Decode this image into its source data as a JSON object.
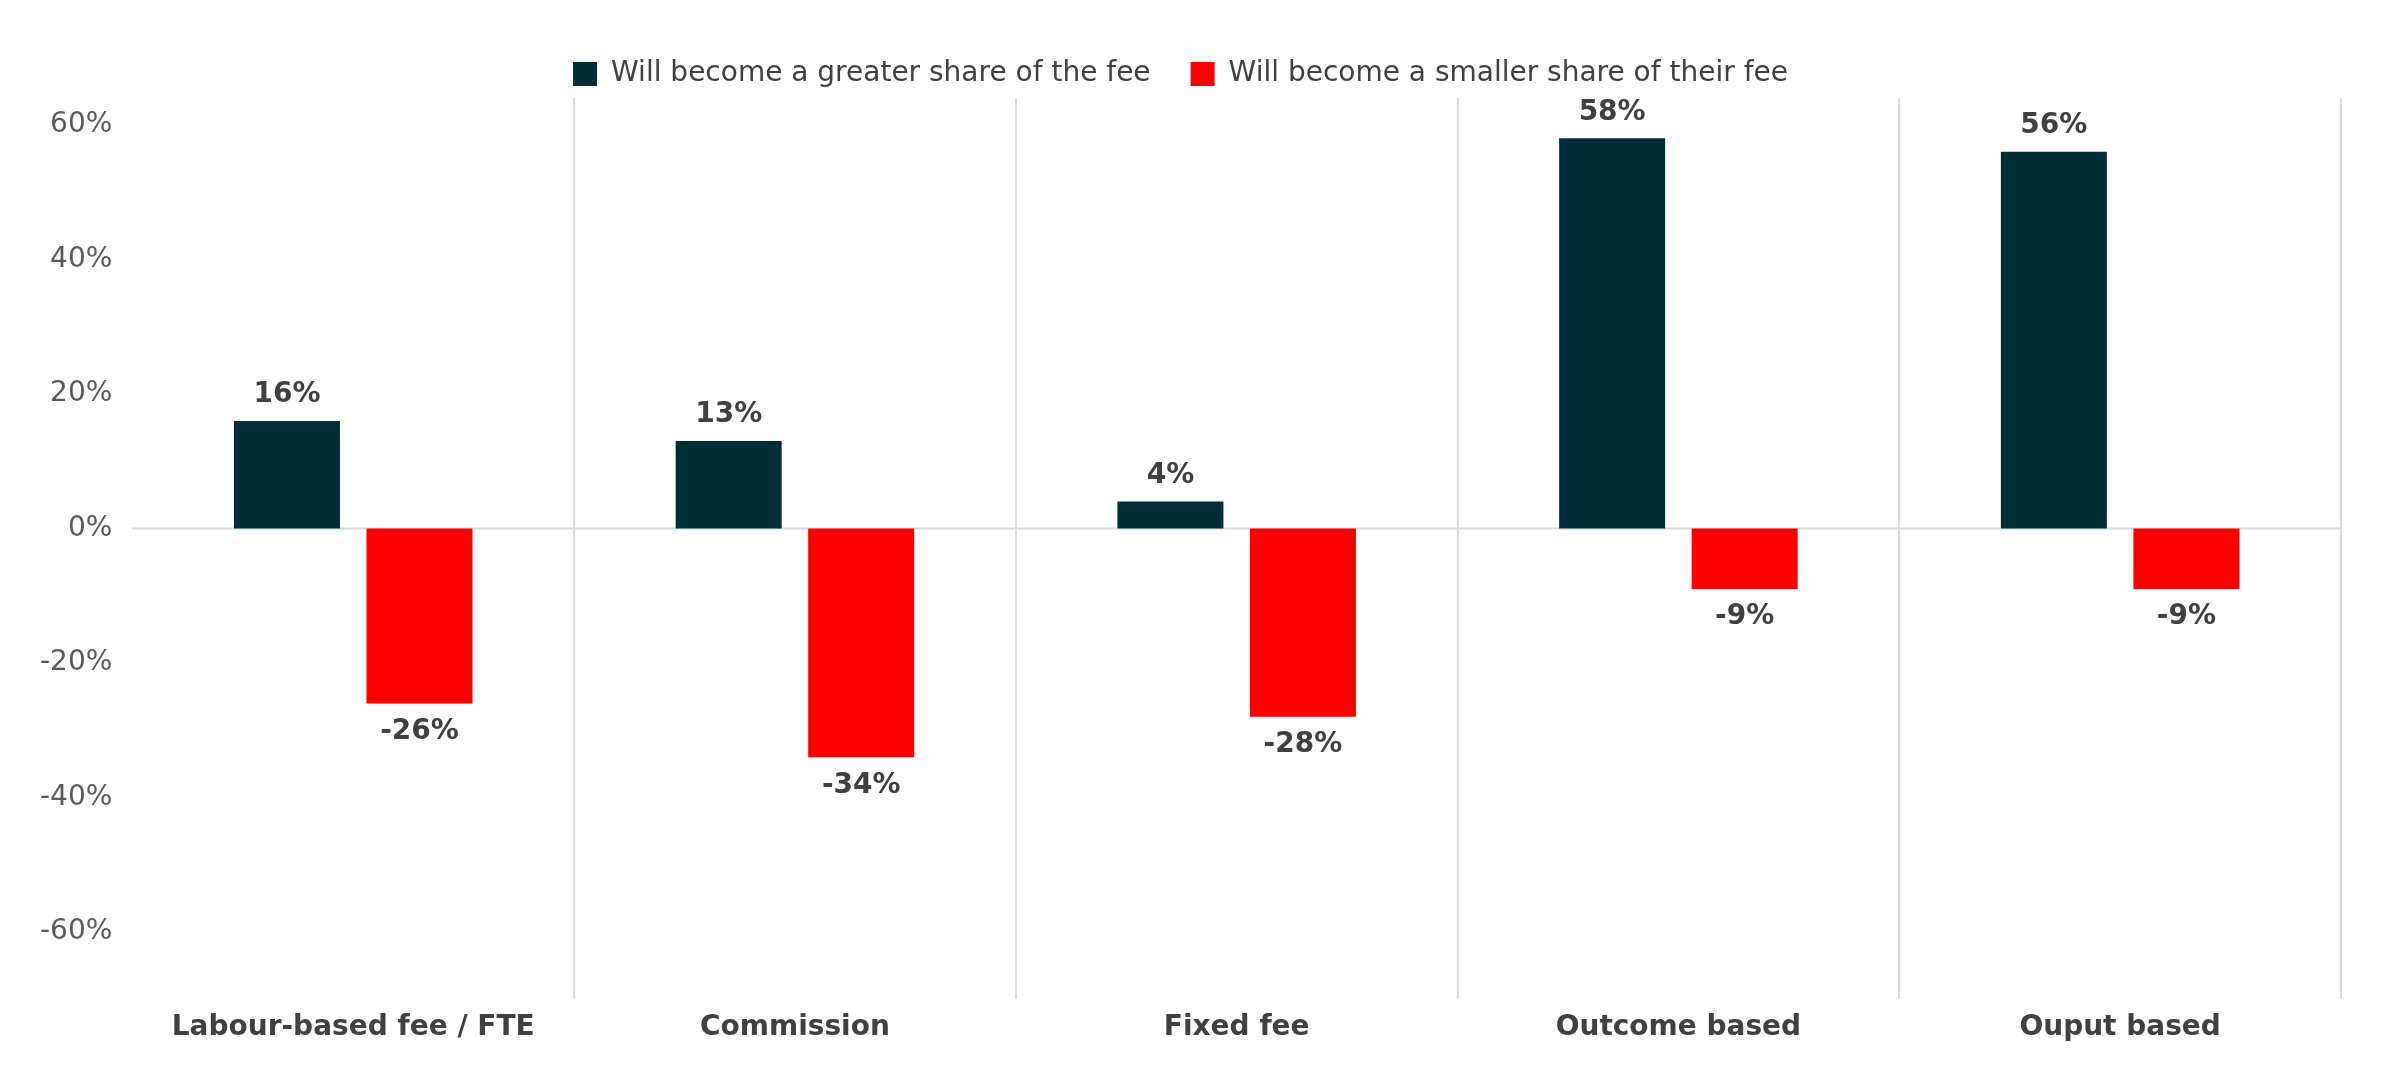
{
  "chart_data": {
    "type": "bar",
    "categories": [
      "Labour-based fee / FTE",
      "Commission",
      "Fixed fee",
      "Outcome based",
      "Ouput based"
    ],
    "series": [
      {
        "name": "Will become a greater share of the fee",
        "color": "#002e36",
        "values": [
          16,
          13,
          4,
          58,
          56
        ],
        "value_labels": [
          "16%",
          "13%",
          "4%",
          "58%",
          "56%"
        ]
      },
      {
        "name": "Will become a smaller share of their fee",
        "color": "#ff0000",
        "values": [
          -26,
          -34,
          -28,
          -9,
          -9
        ],
        "value_labels": [
          "-26%",
          "-34%",
          "-28%",
          "-9%",
          "-9%"
        ]
      }
    ],
    "ylim": [
      -70,
      64
    ],
    "yticks": [
      {
        "value": -60,
        "label": "-60%"
      },
      {
        "value": -40,
        "label": "-40%"
      },
      {
        "value": -20,
        "label": "-20%"
      },
      {
        "value": 0,
        "label": "0%"
      },
      {
        "value": 20,
        "label": "20%"
      },
      {
        "value": 40,
        "label": "40%"
      },
      {
        "value": 60,
        "label": "60%"
      }
    ],
    "grid": "x",
    "ref_lines": [
      {
        "axis": "y",
        "value": 0,
        "color": "#d9d9d9"
      }
    ],
    "legend": "top"
  }
}
